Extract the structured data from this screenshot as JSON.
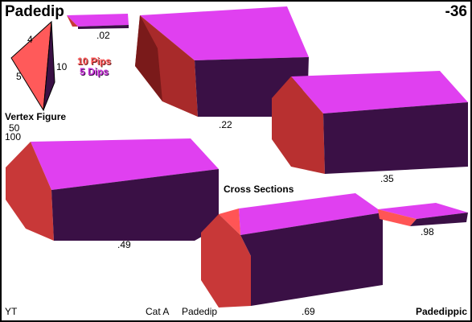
{
  "header": {
    "title": "Padedip",
    "index": "-36"
  },
  "vertex_figure": {
    "label": "Vertex Figure",
    "edge_labels": [
      "4",
      "5",
      "10"
    ],
    "values": [
      "50",
      "100"
    ]
  },
  "legend": {
    "pips": "10 Pips",
    "dips": "5 Dips",
    "pips_color": "#ff5a5a",
    "dips_color": "#cc33dd"
  },
  "cross_sections": {
    "label": "Cross Sections",
    "values": [
      ".02",
      ".22",
      ".35",
      ".49",
      ".69",
      ".98"
    ]
  },
  "footer": {
    "author": "YT",
    "category": "Cat A",
    "name": "Padedip",
    "family": "Padedippic"
  },
  "colors": {
    "top_face": "#e040f0",
    "front_face": "#3a1045",
    "side_face": "#c83838",
    "side_light": "#ff5555"
  }
}
